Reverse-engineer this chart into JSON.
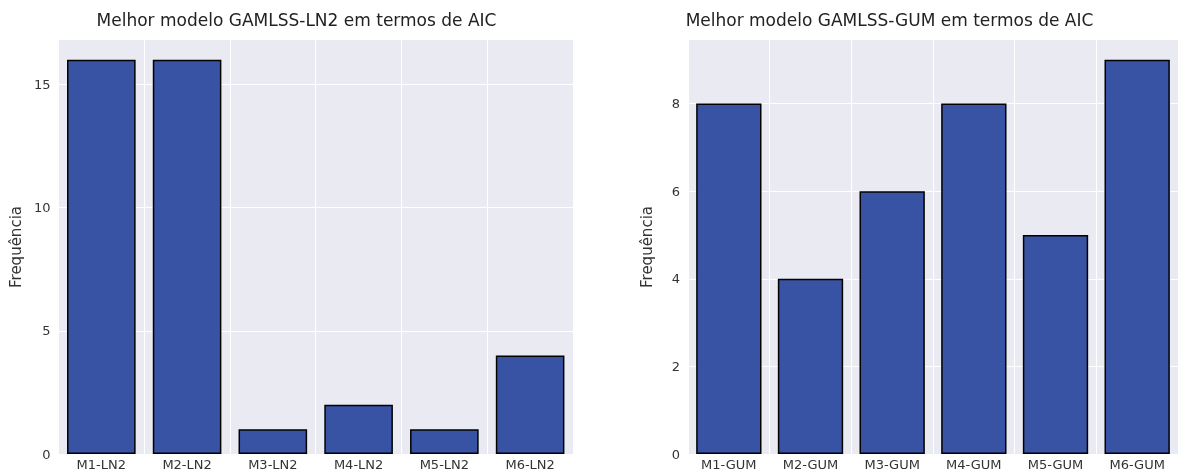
{
  "chart_data": [
    {
      "type": "bar",
      "title": "Melhor modelo GAMLSS-LN2 em termos de AIC",
      "ylabel": "Frequência",
      "categories": [
        "M1-LN2",
        "M2-LN2",
        "M3-LN2",
        "M4-LN2",
        "M5-LN2",
        "M6-LN2"
      ],
      "values": [
        16,
        16,
        1,
        2,
        1,
        4
      ],
      "color": "#3953a4",
      "ylim": [
        0,
        16.8
      ],
      "yticks": [
        0,
        5,
        10,
        15
      ],
      "grid": true
    },
    {
      "type": "bar",
      "title": "Melhor modelo GAMLSS-GUM em termos de AIC",
      "ylabel": "Frequência",
      "categories": [
        "M1-GUM",
        "M2-GUM",
        "M3-GUM",
        "M4-GUM",
        "M5-GUM",
        "M6-GUM"
      ],
      "values": [
        8,
        4,
        6,
        8,
        5,
        9
      ],
      "color": "#3953a4",
      "ylim": [
        0,
        9.45
      ],
      "yticks": [
        0,
        2,
        4,
        6,
        8
      ],
      "grid": true
    }
  ]
}
